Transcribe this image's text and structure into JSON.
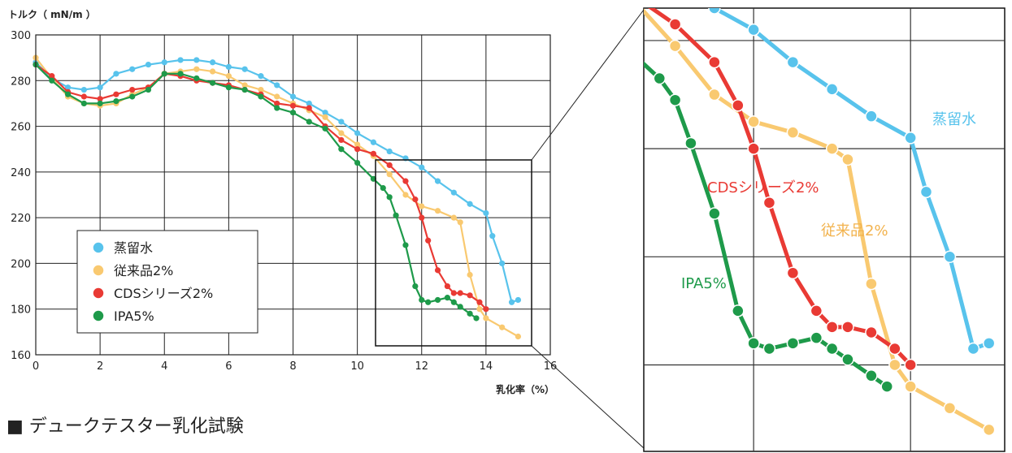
{
  "page": {
    "caption": "■ デュークテスター乳化試験"
  },
  "chart_data": {
    "type": "line",
    "ylabel": "トルク（ mN/m ）",
    "xlabel": "乳化率（%）",
    "xlim": [
      0,
      16
    ],
    "ylim": [
      160,
      300
    ],
    "x_ticks": [
      "0",
      "2",
      "4",
      "6",
      "8",
      "10",
      "12",
      "14",
      "16"
    ],
    "y_ticks": [
      "160",
      "180",
      "200",
      "220",
      "240",
      "260",
      "280",
      "300"
    ],
    "grid": true,
    "legend_position": "lower-left",
    "series": [
      {
        "name": "蒸留水",
        "color": "#58c3ec",
        "x": [
          0,
          0.5,
          1,
          1.5,
          2,
          2.5,
          3,
          3.5,
          4,
          4.5,
          5,
          5.5,
          6,
          6.5,
          7,
          7.5,
          8,
          8.5,
          9,
          9.5,
          10,
          10.5,
          11,
          11.5,
          12,
          12.5,
          13,
          13.5,
          14,
          14.2,
          14.5,
          14.8,
          15
        ],
        "y": [
          288,
          281,
          277,
          276,
          277,
          283,
          285,
          287,
          288,
          289,
          289,
          288,
          286,
          285,
          282,
          278,
          273,
          270,
          266,
          262,
          257,
          253,
          249,
          246,
          242,
          236,
          231,
          226,
          222,
          212,
          200,
          183,
          184
        ]
      },
      {
        "name": "従来品2%",
        "color": "#f9c970",
        "x": [
          0,
          0.5,
          1,
          1.5,
          2,
          2.5,
          3,
          3.5,
          4,
          4.5,
          5,
          5.5,
          6,
          6.5,
          7,
          7.5,
          8,
          8.5,
          9,
          9.5,
          10,
          10.5,
          11,
          11.5,
          12,
          12.5,
          13,
          13.2,
          13.5,
          13.8,
          14,
          14.5,
          15
        ],
        "y": [
          290,
          281,
          273,
          270,
          269,
          270,
          274,
          277,
          283,
          284,
          285,
          284,
          282,
          278,
          276,
          273,
          270,
          267,
          264,
          257,
          252,
          247,
          239,
          230,
          225,
          223,
          220,
          218,
          195,
          180,
          176,
          172,
          168
        ]
      },
      {
        "name": "CDSシリーズ2%",
        "color": "#e93a34",
        "x": [
          0,
          0.5,
          1,
          1.5,
          2,
          2.5,
          3,
          3.5,
          4,
          4.5,
          5,
          5.5,
          6,
          6.5,
          7,
          7.5,
          8,
          8.5,
          9,
          9.5,
          10,
          10.5,
          11,
          11.5,
          11.8,
          12,
          12.2,
          12.5,
          12.8,
          13,
          13.2,
          13.5,
          13.8,
          14
        ],
        "y": [
          287,
          282,
          275,
          273,
          272,
          274,
          276,
          277,
          283,
          282,
          280,
          279,
          278,
          276,
          274,
          270,
          269,
          268,
          260,
          254,
          250,
          248,
          243,
          236,
          228,
          220,
          210,
          197,
          190,
          187,
          187,
          186,
          183,
          180
        ]
      },
      {
        "name": "IPA5%",
        "color": "#1e9a4a",
        "x": [
          0,
          0.5,
          1,
          1.5,
          2,
          2.5,
          3,
          3.5,
          4,
          4.5,
          5,
          5.5,
          6,
          6.5,
          7,
          7.5,
          8,
          8.5,
          9,
          9.5,
          10,
          10.5,
          10.8,
          11,
          11.2,
          11.5,
          11.8,
          12,
          12.2,
          12.5,
          12.8,
          13,
          13.2,
          13.5,
          13.7
        ],
        "y": [
          287,
          280,
          274,
          270,
          270,
          271,
          273,
          276,
          283,
          283,
          281,
          279,
          277,
          276,
          273,
          268,
          266,
          262,
          259,
          250,
          244,
          237,
          233,
          229,
          221,
          208,
          190,
          184,
          183,
          184,
          185,
          183,
          181,
          178,
          176
        ]
      }
    ]
  },
  "inset_labels": {
    "distilled": "蒸留水",
    "cds": "CDSシリーズ2%",
    "conventional": "従来品2%",
    "ipa": "IPA5%"
  }
}
